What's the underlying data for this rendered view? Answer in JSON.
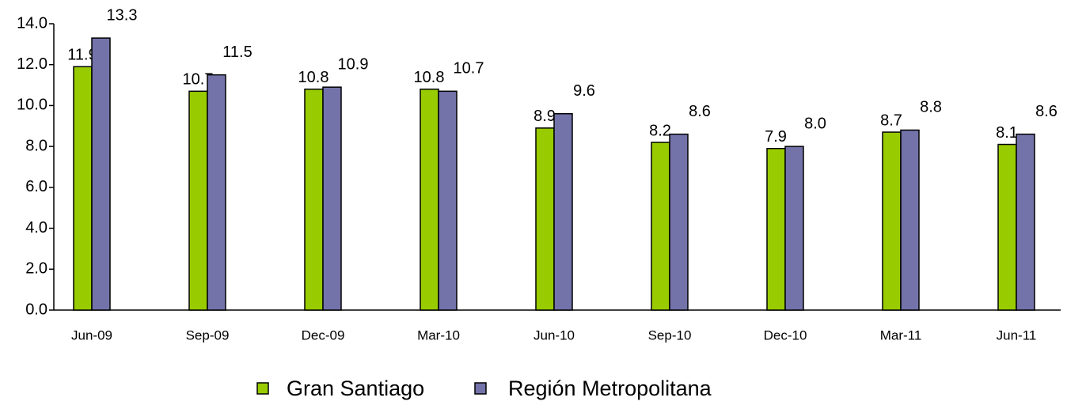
{
  "chart_data": {
    "type": "bar",
    "categories": [
      "Jun-09",
      "Sep-09",
      "Dec-09",
      "Mar-10",
      "Jun-10",
      "Sep-10",
      "Dec-10",
      "Mar-11",
      "Jun-11"
    ],
    "series": [
      {
        "name": "Gran Santiago",
        "color": "#99cc00",
        "values": [
          11.9,
          10.7,
          10.8,
          10.8,
          8.9,
          8.2,
          7.9,
          8.7,
          8.1
        ],
        "value_labels": [
          "11.9",
          "10.7",
          "10.8",
          "10.8",
          "8.9",
          "8.2",
          "7.9",
          "8.7",
          "8.1"
        ]
      },
      {
        "name": "Región Metropolitana",
        "color": "#7373aa",
        "values": [
          13.3,
          11.5,
          10.9,
          10.7,
          9.6,
          8.6,
          8.0,
          8.8,
          8.6
        ],
        "value_labels": [
          "13.3",
          "11.5",
          "10.9",
          "10.7",
          "9.6",
          "8.6",
          "8.0",
          "8.8",
          "8.6"
        ]
      }
    ],
    "ylim": [
      0,
      14
    ],
    "yticks": [
      {
        "value": 0,
        "label": "0.0"
      },
      {
        "value": 2,
        "label": "2.0"
      },
      {
        "value": 4,
        "label": "4.0"
      },
      {
        "value": 6,
        "label": "6.0"
      },
      {
        "value": 8,
        "label": "8.0"
      },
      {
        "value": 10,
        "label": "10.0"
      },
      {
        "value": 12,
        "label": "12.0"
      },
      {
        "value": 14,
        "label": "14.0"
      }
    ],
    "legend": "bottom"
  }
}
